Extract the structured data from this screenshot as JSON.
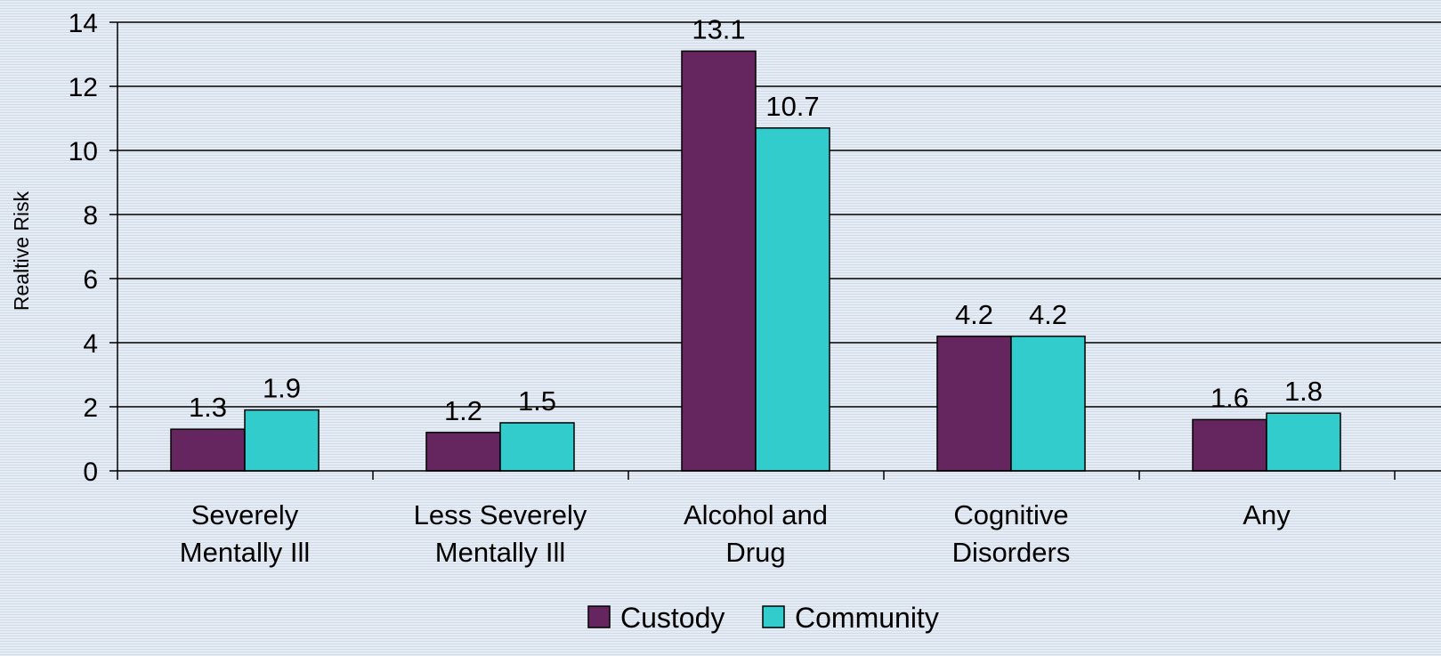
{
  "chart_data": {
    "type": "bar",
    "title": "",
    "xlabel": "",
    "ylabel": "Realtive Risk",
    "ylim": [
      0,
      14
    ],
    "yticks": [
      "0",
      "2",
      "4",
      "6",
      "8",
      "10",
      "12",
      "14"
    ],
    "grid": true,
    "legend_position": "bottom",
    "categories": [
      [
        "Severely",
        "Mentally Ill"
      ],
      [
        "Less Severely",
        "Mentally Ill"
      ],
      [
        "Alcohol and",
        "Drug"
      ],
      [
        "Cognitive",
        "Disorders"
      ],
      [
        "Any"
      ]
    ],
    "series": [
      {
        "name": "Custody",
        "color": "#652660",
        "values": [
          1.3,
          1.2,
          13.1,
          4.2,
          1.6
        ],
        "labels": [
          "1.3",
          "1.2",
          "13.1",
          "4.2",
          "1.6"
        ]
      },
      {
        "name": "Community",
        "color": "#33cccc",
        "values": [
          1.9,
          1.5,
          10.7,
          4.2,
          1.8
        ],
        "labels": [
          "1.9",
          "1.5",
          "10.7",
          "4.2",
          "1.8"
        ]
      }
    ]
  }
}
